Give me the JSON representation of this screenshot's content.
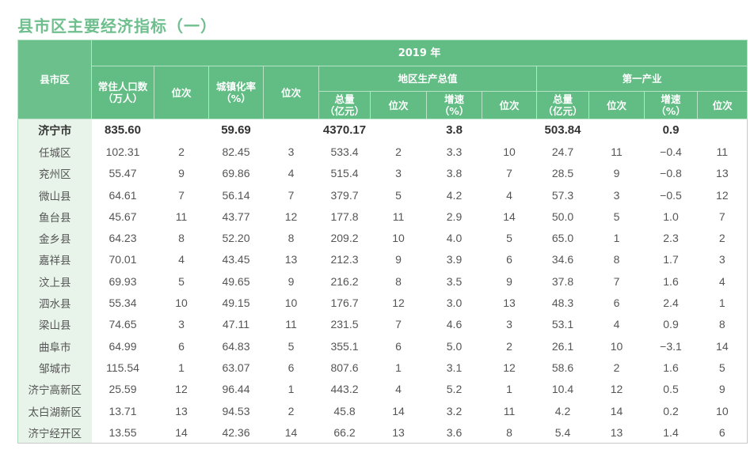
{
  "title": "县市区主要经济指标（一）",
  "header": {
    "county_label": "县市区",
    "year_label": "2019 年",
    "groups": {
      "gdp": "地区生产总值",
      "primary": "第一产业"
    },
    "columns": {
      "population": "常住人口数（万人）",
      "population_line1": "常住人口数",
      "population_line2": "（万人）",
      "rank": "位次",
      "urbanization_line1": "城镇化率",
      "urbanization_line2": "（%）",
      "total_line1": "总量",
      "total_line2": "（亿元）",
      "growth_line1": "增速",
      "growth_line2": "（%）"
    }
  },
  "rows": [
    {
      "name": "济宁市",
      "pop": "835.60",
      "pop_rank": "",
      "urban": "59.69",
      "urban_rank": "",
      "gdp": "4370.17",
      "gdp_rank": "",
      "gdp_growth": "3.8",
      "gdp_growth_rank": "",
      "pri": "503.84",
      "pri_rank": "",
      "pri_growth": "0.9",
      "pri_growth_rank": ""
    },
    {
      "name": "任城区",
      "pop": "102.31",
      "pop_rank": "2",
      "urban": "82.45",
      "urban_rank": "3",
      "gdp": "533.4",
      "gdp_rank": "2",
      "gdp_growth": "3.3",
      "gdp_growth_rank": "10",
      "pri": "24.7",
      "pri_rank": "11",
      "pri_growth": "−0.4",
      "pri_growth_rank": "11"
    },
    {
      "name": "兖州区",
      "pop": "55.47",
      "pop_rank": "9",
      "urban": "69.86",
      "urban_rank": "4",
      "gdp": "515.4",
      "gdp_rank": "3",
      "gdp_growth": "3.8",
      "gdp_growth_rank": "7",
      "pri": "28.5",
      "pri_rank": "9",
      "pri_growth": "−0.8",
      "pri_growth_rank": "13"
    },
    {
      "name": "微山县",
      "pop": "64.61",
      "pop_rank": "7",
      "urban": "56.14",
      "urban_rank": "7",
      "gdp": "379.7",
      "gdp_rank": "5",
      "gdp_growth": "4.2",
      "gdp_growth_rank": "4",
      "pri": "57.3",
      "pri_rank": "3",
      "pri_growth": "−0.5",
      "pri_growth_rank": "12"
    },
    {
      "name": "鱼台县",
      "pop": "45.67",
      "pop_rank": "11",
      "urban": "43.77",
      "urban_rank": "12",
      "gdp": "177.8",
      "gdp_rank": "11",
      "gdp_growth": "2.9",
      "gdp_growth_rank": "14",
      "pri": "50.0",
      "pri_rank": "5",
      "pri_growth": "1.0",
      "pri_growth_rank": "7"
    },
    {
      "name": "金乡县",
      "pop": "64.23",
      "pop_rank": "8",
      "urban": "52.20",
      "urban_rank": "8",
      "gdp": "209.2",
      "gdp_rank": "10",
      "gdp_growth": "4.0",
      "gdp_growth_rank": "5",
      "pri": "65.0",
      "pri_rank": "1",
      "pri_growth": "2.3",
      "pri_growth_rank": "2"
    },
    {
      "name": "嘉祥县",
      "pop": "70.01",
      "pop_rank": "4",
      "urban": "43.45",
      "urban_rank": "13",
      "gdp": "212.3",
      "gdp_rank": "9",
      "gdp_growth": "3.9",
      "gdp_growth_rank": "6",
      "pri": "34.6",
      "pri_rank": "8",
      "pri_growth": "1.7",
      "pri_growth_rank": "3"
    },
    {
      "name": "汶上县",
      "pop": "69.93",
      "pop_rank": "5",
      "urban": "49.65",
      "urban_rank": "9",
      "gdp": "216.2",
      "gdp_rank": "8",
      "gdp_growth": "3.5",
      "gdp_growth_rank": "9",
      "pri": "37.8",
      "pri_rank": "7",
      "pri_growth": "1.6",
      "pri_growth_rank": "4"
    },
    {
      "name": "泗水县",
      "pop": "55.34",
      "pop_rank": "10",
      "urban": "49.15",
      "urban_rank": "10",
      "gdp": "176.7",
      "gdp_rank": "12",
      "gdp_growth": "3.0",
      "gdp_growth_rank": "13",
      "pri": "48.3",
      "pri_rank": "6",
      "pri_growth": "2.4",
      "pri_growth_rank": "1"
    },
    {
      "name": "梁山县",
      "pop": "74.65",
      "pop_rank": "3",
      "urban": "47.11",
      "urban_rank": "11",
      "gdp": "231.5",
      "gdp_rank": "7",
      "gdp_growth": "4.6",
      "gdp_growth_rank": "3",
      "pri": "53.1",
      "pri_rank": "4",
      "pri_growth": "0.9",
      "pri_growth_rank": "8"
    },
    {
      "name": "曲阜市",
      "pop": "64.99",
      "pop_rank": "6",
      "urban": "64.83",
      "urban_rank": "5",
      "gdp": "355.1",
      "gdp_rank": "6",
      "gdp_growth": "5.0",
      "gdp_growth_rank": "2",
      "pri": "26.1",
      "pri_rank": "10",
      "pri_growth": "−3.1",
      "pri_growth_rank": "14"
    },
    {
      "name": "邹城市",
      "pop": "115.54",
      "pop_rank": "1",
      "urban": "63.07",
      "urban_rank": "6",
      "gdp": "807.6",
      "gdp_rank": "1",
      "gdp_growth": "3.1",
      "gdp_growth_rank": "12",
      "pri": "58.6",
      "pri_rank": "2",
      "pri_growth": "1.6",
      "pri_growth_rank": "5"
    },
    {
      "name": "济宁高新区",
      "pop": "25.59",
      "pop_rank": "12",
      "urban": "96.44",
      "urban_rank": "1",
      "gdp": "443.2",
      "gdp_rank": "4",
      "gdp_growth": "5.2",
      "gdp_growth_rank": "1",
      "pri": "10.4",
      "pri_rank": "12",
      "pri_growth": "0.5",
      "pri_growth_rank": "9"
    },
    {
      "name": "太白湖新区",
      "pop": "13.71",
      "pop_rank": "13",
      "urban": "94.53",
      "urban_rank": "2",
      "gdp": "45.8",
      "gdp_rank": "14",
      "gdp_growth": "3.2",
      "gdp_growth_rank": "11",
      "pri": "4.2",
      "pri_rank": "14",
      "pri_growth": "0.2",
      "pri_growth_rank": "10"
    },
    {
      "name": "济宁经开区",
      "pop": "13.55",
      "pop_rank": "14",
      "urban": "42.36",
      "urban_rank": "14",
      "gdp": "66.2",
      "gdp_rank": "13",
      "gdp_growth": "3.6",
      "gdp_growth_rank": "8",
      "pri": "5.4",
      "pri_rank": "13",
      "pri_growth": "1.4",
      "pri_growth_rank": "6"
    }
  ],
  "colors": {
    "header_green": "#62bd84",
    "title_green": "#6fbf8e",
    "name_column_bg": "#e8f3ea"
  }
}
